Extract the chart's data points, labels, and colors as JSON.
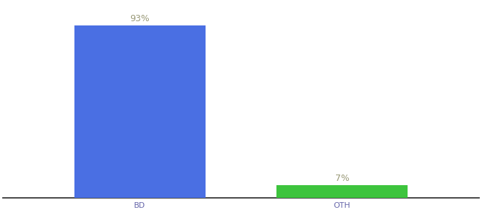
{
  "categories": [
    "BD",
    "OTH"
  ],
  "values": [
    93,
    7
  ],
  "bar_colors": [
    "#4a6fe3",
    "#3dc43d"
  ],
  "label_texts": [
    "93%",
    "7%"
  ],
  "background_color": "#ffffff",
  "ylim": [
    0,
    105
  ],
  "bar_width": 0.22,
  "label_fontsize": 9,
  "tick_fontsize": 8,
  "label_color": "#999977",
  "tick_color": "#6666aa"
}
